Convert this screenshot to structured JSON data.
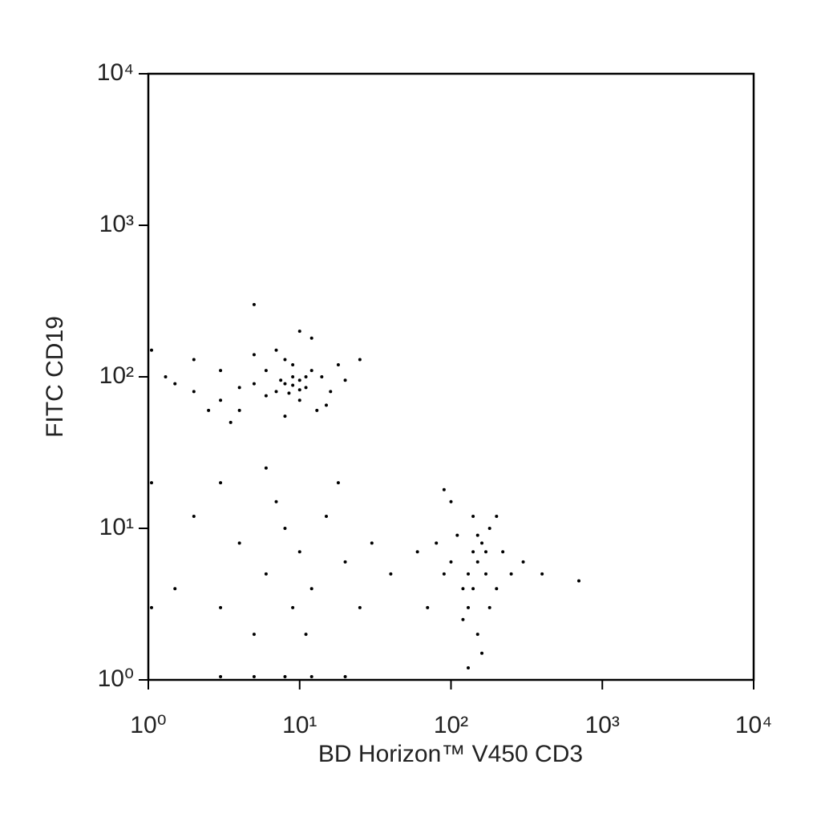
{
  "chart_data": {
    "type": "scatter",
    "x_label": "BD Horizon™ V450 CD3",
    "y_label": "FITC CD19",
    "x_scale": "log",
    "y_scale": "log",
    "xlim": [
      1,
      10000
    ],
    "ylim": [
      1,
      10000
    ],
    "xticks": [
      {
        "value": 1,
        "label": "10⁰"
      },
      {
        "value": 10,
        "label": "10¹"
      },
      {
        "value": 100,
        "label": "10²"
      },
      {
        "value": 1000,
        "label": "10³"
      },
      {
        "value": 10000,
        "label": "10⁴"
      }
    ],
    "yticks": [
      {
        "value": 1,
        "label": "10⁰"
      },
      {
        "value": 10,
        "label": "10¹"
      },
      {
        "value": 100,
        "label": "10²"
      },
      {
        "value": 1000,
        "label": "10³"
      },
      {
        "value": 10000,
        "label": "10⁴"
      }
    ],
    "color": "#000000",
    "x": [
      8,
      10,
      7,
      9,
      11,
      6,
      12,
      5,
      4,
      3,
      2,
      1.5,
      14,
      16,
      20,
      9,
      8,
      10,
      6,
      4,
      3,
      2.5,
      13,
      18,
      7,
      5,
      1.3,
      25,
      10,
      5,
      12,
      15,
      8,
      3.5,
      2,
      9,
      10,
      7.5,
      11,
      8.5,
      4,
      6,
      8,
      10,
      12,
      3,
      5,
      9,
      15,
      20,
      7,
      2,
      30,
      40,
      3,
      6,
      18,
      25,
      1.5,
      11,
      150,
      140,
      130,
      160,
      120,
      170,
      100,
      110,
      180,
      90,
      200,
      130,
      150,
      80,
      220,
      250,
      140,
      100,
      160,
      120,
      180,
      70,
      60,
      300,
      200,
      130,
      90,
      150,
      170,
      140,
      700,
      400,
      3,
      5,
      8,
      12,
      20,
      1.05,
      1.05,
      1.05
    ],
    "y": [
      90,
      95,
      80,
      100,
      85,
      75,
      110,
      90,
      85,
      70,
      80,
      90,
      100,
      80,
      95,
      120,
      130,
      70,
      110,
      60,
      110,
      60,
      60,
      120,
      150,
      140,
      100,
      130,
      200,
      300,
      180,
      65,
      55,
      50,
      130,
      88,
      82,
      95,
      100,
      78,
      8,
      5,
      10,
      7,
      4,
      3,
      2,
      3,
      12,
      6,
      15,
      12,
      8,
      5,
      20,
      25,
      20,
      3,
      4,
      2,
      6,
      7,
      5,
      8,
      4,
      5,
      6,
      9,
      10,
      5,
      4,
      3,
      2,
      8,
      7,
      5,
      12,
      15,
      1.5,
      2.5,
      3,
      3,
      7,
      6,
      12,
      1.2,
      18,
      9,
      7,
      4,
      4.5,
      5,
      1.05,
      1.05,
      1.05,
      1.05,
      1.05,
      20,
      3,
      150
    ]
  }
}
